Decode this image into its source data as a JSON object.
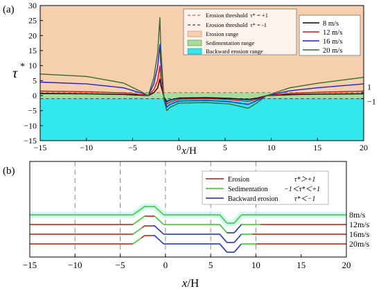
{
  "chart_data": [
    {
      "panel_label": "(a)",
      "type": "line",
      "xlabel_italic": "x",
      "xlabel_rest": "/H",
      "ylabel": "τ",
      "ylabel_sup": "*",
      "xlim": [
        -15,
        20
      ],
      "ylim": [
        -15,
        30
      ],
      "xticks": [
        "−15",
        "−10",
        "−5",
        "0",
        "5",
        "10",
        "15",
        "20"
      ],
      "yticks": [
        "−15",
        "−10",
        "−5",
        "0",
        "5",
        "10",
        "15",
        "20",
        "25",
        "30"
      ],
      "right_labels": [
        "1",
        "−1"
      ],
      "regions": [
        {
          "name": "Erosion range",
          "y": [
            1,
            30
          ],
          "color": "#f6cfae"
        },
        {
          "name": "Sedimentation range",
          "y": [
            -1,
            1
          ],
          "color": "#a7dca0"
        },
        {
          "name": "Backward erosion range",
          "y": [
            -15,
            -1
          ],
          "color": "#33e8ec"
        }
      ],
      "thresholds": [
        {
          "name": "Erosion threshold",
          "formula": "τ* = +1",
          "value": 1,
          "color": "#e05a5a"
        },
        {
          "name": "Erosion threshold",
          "formula": "τ* = -1",
          "value": -1,
          "color": "#444444"
        }
      ],
      "series": [
        {
          "name": "8 m/s",
          "color": "#000000",
          "points": [
            [
              -15,
              0.7
            ],
            [
              -10,
              0.6
            ],
            [
              -6,
              0.4
            ],
            [
              -4,
              0.1
            ],
            [
              -3.3,
              0.0
            ],
            [
              -2.7,
              1.0
            ],
            [
              -2.3,
              2.5
            ],
            [
              -2.05,
              5.5
            ],
            [
              -1.95,
              3.5
            ],
            [
              -1.6,
              -0.5
            ],
            [
              -1.3,
              -2.0
            ],
            [
              -1.0,
              -1.5
            ],
            [
              0,
              -0.8
            ],
            [
              3,
              -0.7
            ],
            [
              5.5,
              -0.9
            ],
            [
              6.5,
              -1.1
            ],
            [
              7.5,
              -1.3
            ],
            [
              8.5,
              -0.8
            ],
            [
              9.5,
              0.0
            ],
            [
              12,
              0.3
            ],
            [
              15,
              0.5
            ],
            [
              20,
              0.6
            ]
          ]
        },
        {
          "name": "12 m/s",
          "color": "#e01010",
          "points": [
            [
              -15,
              1.5
            ],
            [
              -10,
              1.3
            ],
            [
              -6,
              0.9
            ],
            [
              -4,
              0.3
            ],
            [
              -3.3,
              0.0
            ],
            [
              -2.7,
              2.0
            ],
            [
              -2.3,
              5.0
            ],
            [
              -2.05,
              9.8
            ],
            [
              -1.95,
              6.0
            ],
            [
              -1.6,
              -0.8
            ],
            [
              -1.3,
              -2.8
            ],
            [
              -1.0,
              -2.2
            ],
            [
              0,
              -1.2
            ],
            [
              3,
              -1.0
            ],
            [
              5.5,
              -1.3
            ],
            [
              6.5,
              -1.6
            ],
            [
              7.5,
              -1.9
            ],
            [
              8.5,
              -1.1
            ],
            [
              9.5,
              0.0
            ],
            [
              12,
              0.7
            ],
            [
              15,
              1.1
            ],
            [
              20,
              1.5
            ]
          ]
        },
        {
          "name": "16 m/s",
          "color": "#1f1fd6",
          "points": [
            [
              -15,
              4.5
            ],
            [
              -10,
              3.9
            ],
            [
              -6,
              2.6
            ],
            [
              -4,
              0.8
            ],
            [
              -3.3,
              0.0
            ],
            [
              -2.7,
              4.0
            ],
            [
              -2.3,
              9.5
            ],
            [
              -2.05,
              17.0
            ],
            [
              -1.95,
              11.0
            ],
            [
              -1.6,
              -1.0
            ],
            [
              -1.3,
              -3.8
            ],
            [
              -1.0,
              -3.0
            ],
            [
              0,
              -1.8
            ],
            [
              3,
              -1.6
            ],
            [
              5.5,
              -2.0
            ],
            [
              6.5,
              -2.5
            ],
            [
              7.5,
              -2.9
            ],
            [
              8.5,
              -1.6
            ],
            [
              9.5,
              0.0
            ],
            [
              12,
              1.6
            ],
            [
              15,
              2.6
            ],
            [
              20,
              3.9
            ]
          ]
        },
        {
          "name": "20 m/s",
          "color": "#2e6e2e",
          "points": [
            [
              -15,
              7.2
            ],
            [
              -10,
              6.4
            ],
            [
              -6,
              4.2
            ],
            [
              -4,
              1.2
            ],
            [
              -3.3,
              0.0
            ],
            [
              -2.7,
              6.0
            ],
            [
              -2.3,
              14.0
            ],
            [
              -2.05,
              26.0
            ],
            [
              -1.95,
              16.0
            ],
            [
              -1.6,
              -1.5
            ],
            [
              -1.3,
              -5.0
            ],
            [
              -1.0,
              -4.0
            ],
            [
              0,
              -2.5
            ],
            [
              3,
              -2.3
            ],
            [
              5.5,
              -2.8
            ],
            [
              6.5,
              -3.5
            ],
            [
              7.5,
              -4.2
            ],
            [
              8.5,
              -2.3
            ],
            [
              9.5,
              0.0
            ],
            [
              12,
              2.6
            ],
            [
              15,
              4.1
            ],
            [
              20,
              6.1
            ]
          ]
        }
      ]
    },
    {
      "panel_label": "(b)",
      "type": "line",
      "xlabel_italic": "x",
      "xlabel_rest": "/H",
      "xlim": [
        -15,
        20
      ],
      "xticks": [
        "−15",
        "−10",
        "−5",
        "0",
        "5",
        "10",
        "15",
        "20"
      ],
      "dashed_lines_x": [
        -10,
        -5,
        0,
        5,
        10
      ],
      "legend": [
        {
          "label": "Erosion",
          "condition": "τ*＞+1",
          "color": "#c0392b"
        },
        {
          "label": "Sedimentation",
          "condition": "−1＜τ*＜+1",
          "color": "#4cd137"
        },
        {
          "label": "Backward erosion",
          "condition": "τ*＜−1",
          "color": "#3546c8"
        }
      ],
      "profiles": [
        {
          "name": "8m/s",
          "segments": [
            [
              -15,
              -3.6,
              "sed"
            ],
            [
              -3.6,
              -0.2,
              "sed"
            ],
            [
              -0.2,
              6.8,
              "sed"
            ],
            [
              6.8,
              8.4,
              "sed"
            ],
            [
              8.4,
              20,
              "sed"
            ]
          ]
        },
        {
          "name": "12m/s",
          "segments": [
            [
              -15,
              -3.6,
              "ero"
            ],
            [
              -3.6,
              -2.3,
              "sed"
            ],
            [
              -2.3,
              -1.2,
              "ero"
            ],
            [
              -1.2,
              -0.2,
              "sed"
            ],
            [
              -0.2,
              6.8,
              "sed"
            ],
            [
              6.8,
              8.4,
              "back"
            ],
            [
              8.4,
              10.5,
              "sed"
            ],
            [
              10.5,
              20,
              "ero"
            ]
          ]
        },
        {
          "name": "16m/s",
          "segments": [
            [
              -15,
              -3.6,
              "ero"
            ],
            [
              -3.6,
              -2.6,
              "sed"
            ],
            [
              -2.6,
              -1.5,
              "ero"
            ],
            [
              -1.5,
              -0.2,
              "back"
            ],
            [
              -0.2,
              6.8,
              "back"
            ],
            [
              6.8,
              8.4,
              "back"
            ],
            [
              8.4,
              9.6,
              "sed"
            ],
            [
              9.6,
              20,
              "ero"
            ]
          ]
        },
        {
          "name": "20m/s",
          "segments": [
            [
              -15,
              -3.6,
              "ero"
            ],
            [
              -3.6,
              -2.7,
              "sed"
            ],
            [
              -2.7,
              -1.5,
              "ero"
            ],
            [
              -1.5,
              -0.2,
              "back"
            ],
            [
              -0.2,
              6.8,
              "back"
            ],
            [
              6.8,
              8.4,
              "back"
            ],
            [
              8.4,
              10.0,
              "sed"
            ],
            [
              10.0,
              20,
              "ero"
            ]
          ]
        }
      ]
    }
  ]
}
